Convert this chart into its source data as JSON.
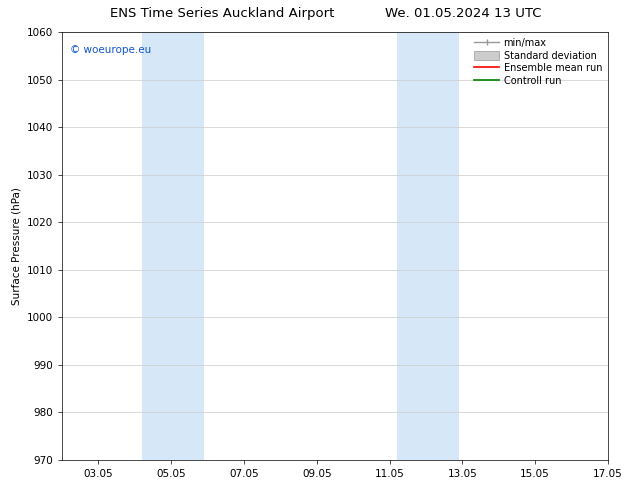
{
  "title_left": "ENS Time Series Auckland Airport",
  "title_right": "We. 01.05.2024 13 UTC",
  "ylabel": "Surface Pressure (hPa)",
  "ylim": [
    970,
    1060
  ],
  "yticks": [
    970,
    980,
    990,
    1000,
    1010,
    1020,
    1030,
    1040,
    1050,
    1060
  ],
  "xtick_labels": [
    "03.05",
    "05.05",
    "07.05",
    "09.05",
    "11.05",
    "13.05",
    "15.05",
    "17.05"
  ],
  "xtick_positions": [
    1,
    3,
    5,
    7,
    9,
    11,
    13,
    15
  ],
  "xlim": [
    0,
    15
  ],
  "band1_start": 2.2,
  "band1_end": 3.9,
  "band2_start": 9.2,
  "band2_end": 10.9,
  "shaded_color": "#d6e8f7",
  "copyright_text": "© woeurope.eu",
  "copyright_color": "#1155cc",
  "bg_color": "#ffffff",
  "grid_color": "#cccccc",
  "axis_font_size": 7.5,
  "ylabel_font_size": 7.5,
  "title_font_size": 9.5,
  "legend_font_size": 7.0,
  "copyright_font_size": 7.5,
  "minmax_color": "#999999",
  "std_color": "#cccccc",
  "ensemble_color": "#ff0000",
  "control_color": "#008000"
}
